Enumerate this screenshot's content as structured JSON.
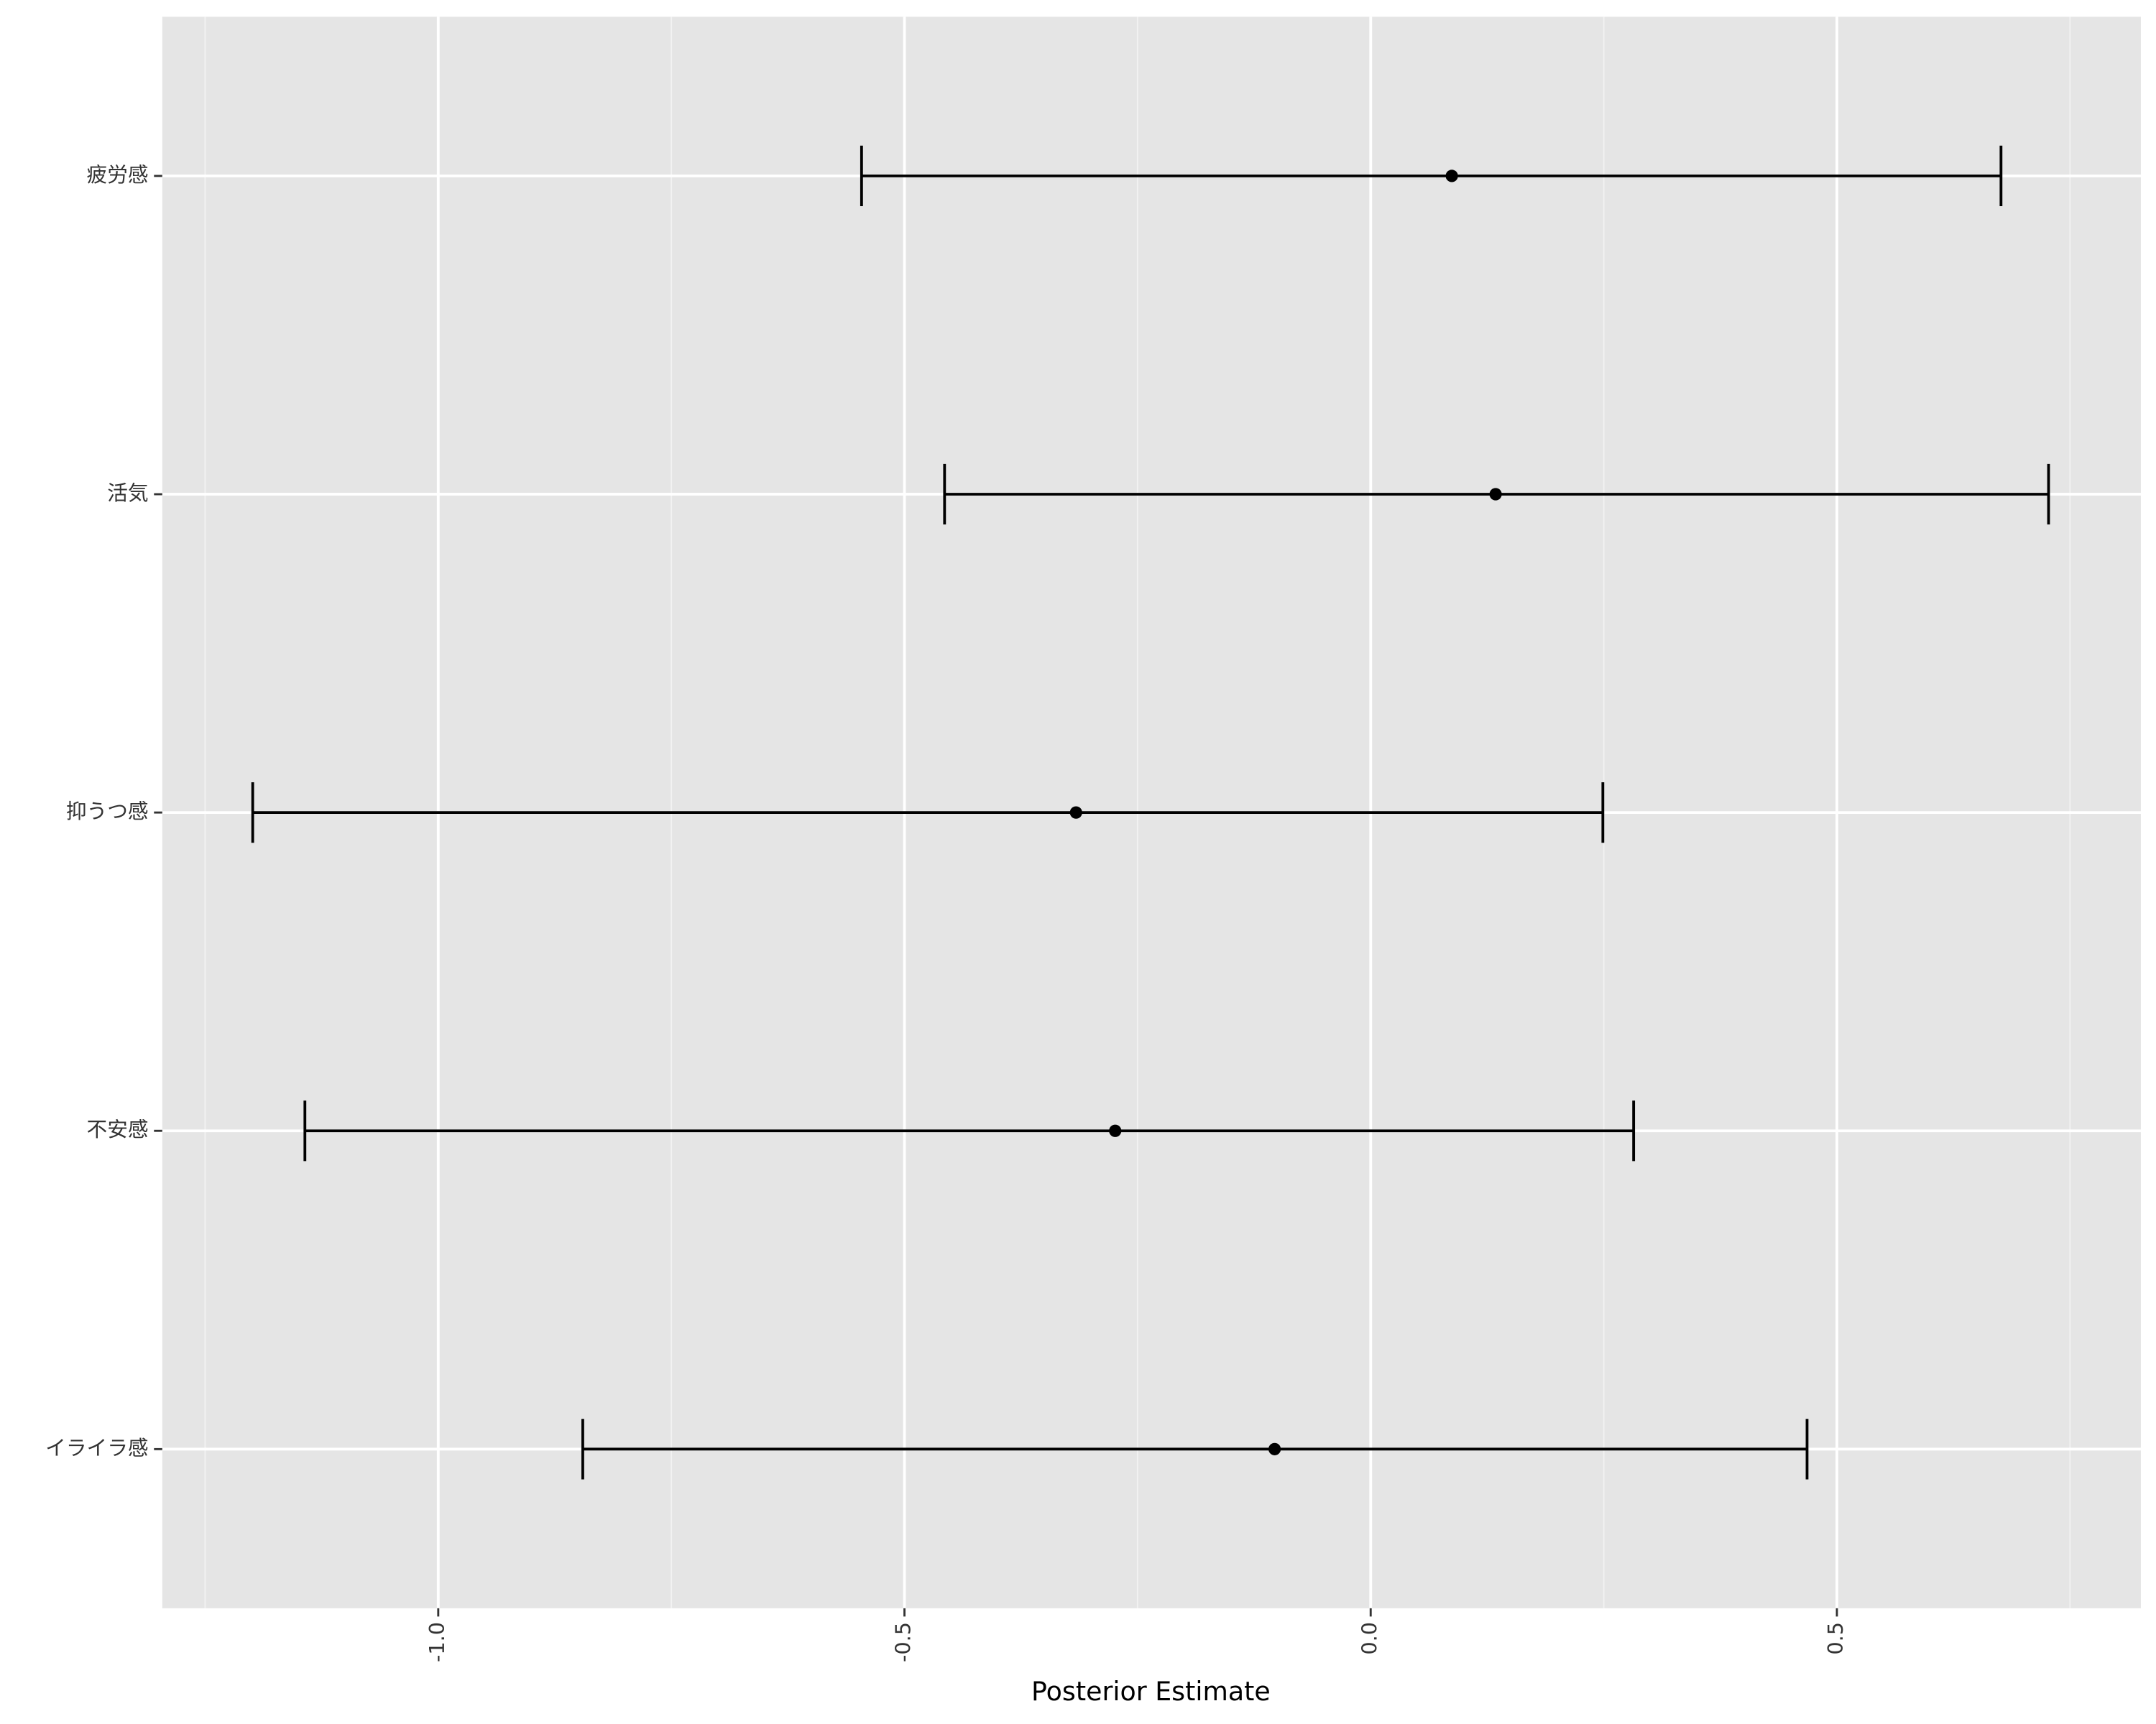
{
  "chart_data": {
    "type": "errorbar",
    "xlabel": "Posterior Estimate",
    "categories": [
      "疲労感",
      "活気",
      "抑うつ感",
      "不安感",
      "イライラ感"
    ],
    "values": [
      0.087,
      0.134,
      -0.316,
      -0.274,
      -0.103
    ],
    "lower": [
      -0.546,
      -0.457,
      -1.199,
      -1.143,
      -0.845
    ],
    "upper": [
      0.676,
      0.727,
      0.249,
      0.282,
      0.468
    ],
    "color": "#000000",
    "xlim": [
      -1.296,
      0.826
    ],
    "xticks": [
      {
        "value": -1.0,
        "label": "-1.0"
      },
      -0.5,
      {
        "value": 0.0,
        "label": "0.0"
      },
      0.5
    ],
    "x_minor_grid": [
      -1.25,
      -0.75,
      -0.25,
      0.25,
      0.75
    ],
    "grid": true
  }
}
